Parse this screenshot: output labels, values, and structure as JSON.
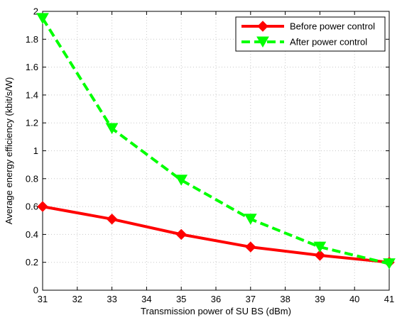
{
  "chart_data": {
    "type": "line",
    "xlabel": "Transmission power of SU BS (dBm)",
    "ylabel": "Average energy efficiency (kbit/s/W)",
    "xlim": [
      31,
      41
    ],
    "ylim": [
      0,
      2
    ],
    "xticks": [
      31,
      32,
      33,
      34,
      35,
      36,
      37,
      38,
      39,
      40,
      41
    ],
    "yticks": [
      0,
      0.2,
      0.4,
      0.6,
      0.8,
      1,
      1.2,
      1.4,
      1.6,
      1.8,
      2
    ],
    "x": [
      31,
      33,
      35,
      37,
      39,
      41
    ],
    "grid": true,
    "legend_position": "top-right",
    "series": [
      {
        "name": "Before power control",
        "values": [
          0.6,
          0.51,
          0.4,
          0.31,
          0.25,
          0.2
        ],
        "color": "#ff0000",
        "line_style": "solid",
        "marker": "diamond"
      },
      {
        "name": "After power control",
        "values": [
          1.95,
          1.16,
          0.79,
          0.51,
          0.31,
          0.19
        ],
        "color": "#00ff00",
        "line_style": "dashed",
        "marker": "triangle-down"
      }
    ]
  }
}
